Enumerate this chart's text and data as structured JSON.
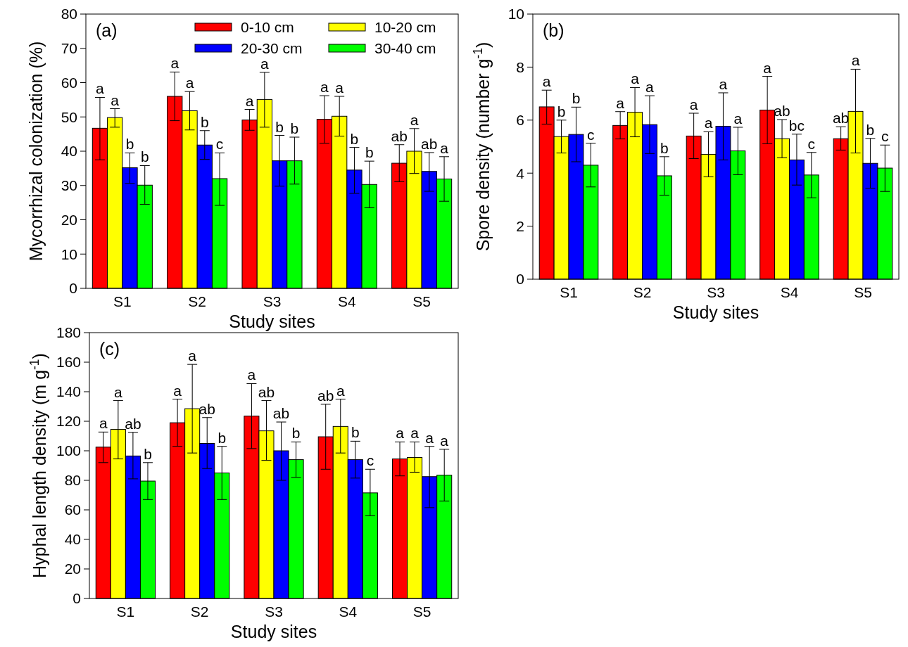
{
  "chart_data": [
    {
      "type": "bar",
      "title": "(a)",
      "xlabel": "Study sites",
      "ylabel": "Mycorrhizal colonization (%)",
      "categories": [
        "S1",
        "S2",
        "S3",
        "S4",
        "S5"
      ],
      "ylim": [
        0,
        80
      ],
      "yticks": [
        0,
        10,
        20,
        30,
        40,
        50,
        60,
        70,
        80
      ],
      "grid": false,
      "legend": "top right",
      "series": [
        {
          "name": "0-10 cm",
          "color": "#ff0000",
          "values": [
            46.7,
            56,
            49.1,
            49.3,
            36.5
          ],
          "errors": [
            [
              37.5,
              55.7
            ],
            [
              48.9,
              63.1
            ],
            [
              46.1,
              52.2
            ],
            [
              42.3,
              56.2
            ],
            [
              31.1,
              41.9
            ]
          ],
          "value_labels": [
            "a",
            "a",
            "a",
            "a",
            "ab"
          ]
        },
        {
          "name": "10-20 cm",
          "color": "#ffff00",
          "values": [
            49.8,
            51.8,
            55.1,
            50.2,
            40
          ],
          "errors": [
            [
              47,
              52.4
            ],
            [
              46.2,
              57.4
            ],
            [
              47,
              63
            ],
            [
              44.4,
              56
            ],
            [
              33.5,
              46.6
            ]
          ],
          "value_labels": [
            "a",
            "a",
            "a",
            "a",
            "a"
          ]
        },
        {
          "name": "20-30 cm",
          "color": "#0000ff",
          "values": [
            35.2,
            41.8,
            37.2,
            34.5,
            34.1
          ],
          "errors": [
            [
              30.6,
              39.5
            ],
            [
              37.6,
              46
            ],
            [
              29.8,
              44.6
            ],
            [
              27.7,
              41.1
            ],
            [
              28.3,
              39.6
            ]
          ],
          "value_labels": [
            "b",
            "b",
            "b",
            "b",
            "ab"
          ]
        },
        {
          "name": "30-40 cm",
          "color": "#00ff00",
          "values": [
            30.1,
            32,
            37.2,
            30.3,
            31.9
          ],
          "errors": [
            [
              24.5,
              35.8
            ],
            [
              24.2,
              39.5
            ],
            [
              30.4,
              44.1
            ],
            [
              23.5,
              37.1
            ],
            [
              25.4,
              38.4
            ]
          ],
          "value_labels": [
            "b",
            "c",
            "b",
            "b",
            "a"
          ]
        }
      ]
    },
    {
      "type": "bar",
      "title": "(b)",
      "xlabel": "Study sites",
      "ylabel": "Spore density (number g$^{-1}$)",
      "categories": [
        "S1",
        "S2",
        "S3",
        "S4",
        "S5"
      ],
      "ylim": [
        0,
        10
      ],
      "yticks": [
        0,
        2,
        4,
        6,
        8,
        10
      ],
      "grid": false,
      "series": [
        {
          "color": "#ff0000",
          "values": [
            6.5,
            5.8,
            5.4,
            6.38,
            5.3
          ],
          "errors": [
            [
              5.85,
              7.13
            ],
            [
              5.29,
              6.32
            ],
            [
              4.55,
              6.26
            ],
            [
              5.11,
              7.65
            ],
            [
              4.87,
              5.75
            ]
          ],
          "value_labels": [
            "a",
            "a",
            "a",
            "a",
            "ab"
          ]
        },
        {
          "color": "#ffff00",
          "values": [
            5.38,
            6.3,
            4.71,
            5.3,
            6.33
          ],
          "errors": [
            [
              4.76,
              6.0
            ],
            [
              5.37,
              7.23
            ],
            [
              3.86,
              5.56
            ],
            [
              4.58,
              6.02
            ],
            [
              4.76,
              7.92
            ]
          ],
          "value_labels": [
            "b",
            "a",
            "a",
            "ab",
            "a"
          ]
        },
        {
          "color": "#0000ff",
          "values": [
            5.46,
            5.83,
            5.77,
            4.5,
            4.37
          ],
          "errors": [
            [
              4.43,
              6.49
            ],
            [
              4.74,
              6.92
            ],
            [
              4.5,
              7.03
            ],
            [
              3.55,
              5.47
            ],
            [
              3.43,
              5.31
            ]
          ],
          "value_labels": [
            "b",
            "a",
            "a",
            "bc",
            "b"
          ]
        },
        {
          "color": "#00ff00",
          "values": [
            4.3,
            3.9,
            4.84,
            3.93,
            4.19
          ],
          "errors": [
            [
              3.48,
              5.13
            ],
            [
              3.17,
              4.62
            ],
            [
              3.94,
              5.73
            ],
            [
              3.07,
              4.78
            ],
            [
              3.31,
              5.06
            ]
          ],
          "value_labels": [
            "c",
            "b",
            "a",
            "c",
            "c"
          ]
        }
      ]
    },
    {
      "type": "bar",
      "title": "(c)",
      "xlabel": "Study sites",
      "ylabel": "Hyphal length density (m g$^{-1}$)",
      "categories": [
        "S1",
        "S2",
        "S3",
        "S4",
        "S5"
      ],
      "ylim": [
        0,
        180
      ],
      "yticks": [
        0,
        20,
        40,
        60,
        80,
        100,
        120,
        140,
        160,
        180
      ],
      "grid": false,
      "series": [
        {
          "color": "#ff0000",
          "values": [
            102.5,
            119,
            123.5,
            109.5,
            94.5
          ],
          "errors": [
            [
              92,
              112.7
            ],
            [
              103,
              135
            ],
            [
              101.5,
              145.5
            ],
            [
              87.5,
              131.5
            ],
            [
              83,
              106
            ]
          ],
          "value_labels": [
            "a",
            "a",
            "a",
            "ab",
            "a"
          ]
        },
        {
          "color": "#ffff00",
          "values": [
            114.5,
            128.5,
            113.5,
            116.5,
            95.5
          ],
          "errors": [
            [
              94.5,
              134
            ],
            [
              98.5,
              158.5
            ],
            [
              93.5,
              134
            ],
            [
              98.5,
              135
            ],
            [
              85.5,
              106
            ]
          ],
          "value_labels": [
            "a",
            "a",
            "ab",
            "a",
            "a"
          ]
        },
        {
          "color": "#0000ff",
          "values": [
            96.5,
            105,
            100,
            94,
            82.5
          ],
          "errors": [
            [
              81,
              112.5
            ],
            [
              88,
              122.5
            ],
            [
              80,
              119.5
            ],
            [
              81.5,
              106.5
            ],
            [
              61.5,
              103
            ]
          ],
          "value_labels": [
            "ab",
            "ab",
            "ab",
            "b",
            "a"
          ]
        },
        {
          "color": "#00ff00",
          "values": [
            79.5,
            85,
            94,
            71.5,
            83.5
          ],
          "errors": [
            [
              67,
              92
            ],
            [
              67,
              103
            ],
            [
              82,
              106
            ],
            [
              56,
              87.5
            ],
            [
              66,
              101
            ]
          ],
          "value_labels": [
            "b",
            "b",
            "b",
            "c",
            "a"
          ]
        }
      ]
    }
  ]
}
